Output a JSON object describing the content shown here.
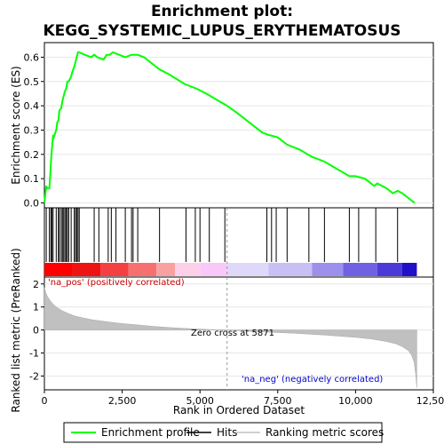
{
  "chart_data": {
    "type": "line",
    "title_line1": "Enrichment plot:",
    "title_line2": "KEGG_SYSTEMIC_LUPUS_ERYTHEMATOSUS",
    "top_panel": {
      "ylabel": "Enrichment score (ES)",
      "ylim": [
        -0.02,
        0.66
      ],
      "yticks": [
        "0.0",
        "0.1",
        "0.2",
        "0.3",
        "0.4",
        "0.5",
        "0.6"
      ],
      "ytick_values": [
        0.0,
        0.1,
        0.2,
        0.3,
        0.4,
        0.5,
        0.6
      ],
      "line_color": "#00ff00",
      "series": [
        {
          "name": "Enrichment profile",
          "x": [
            0,
            60,
            90,
            160,
            190,
            210,
            240,
            280,
            300,
            380,
            410,
            450,
            480,
            540,
            580,
            620,
            660,
            700,
            740,
            780,
            860,
            900,
            960,
            1000,
            1040,
            1080,
            1120,
            1300,
            1500,
            1600,
            1700,
            1900,
            2000,
            2100,
            2200,
            2400,
            2600,
            2800,
            3000,
            3200,
            3700,
            4000,
            4500,
            4900,
            5200,
            5600,
            5871,
            6200,
            6600,
            7000,
            7200,
            7500,
            7800,
            8200,
            8600,
            9000,
            9400,
            9800,
            10000,
            10300,
            10600,
            10700,
            11000,
            11200,
            11350,
            11500,
            11700,
            11900
          ],
          "y": [
            0.0,
            0.07,
            0.06,
            0.06,
            0.12,
            0.17,
            0.22,
            0.28,
            0.27,
            0.3,
            0.33,
            0.34,
            0.38,
            0.39,
            0.42,
            0.44,
            0.46,
            0.47,
            0.5,
            0.5,
            0.52,
            0.54,
            0.56,
            0.58,
            0.6,
            0.62,
            0.62,
            0.61,
            0.6,
            0.61,
            0.6,
            0.59,
            0.61,
            0.61,
            0.62,
            0.61,
            0.6,
            0.61,
            0.61,
            0.6,
            0.55,
            0.53,
            0.49,
            0.47,
            0.45,
            0.42,
            0.4,
            0.37,
            0.33,
            0.29,
            0.28,
            0.27,
            0.24,
            0.22,
            0.19,
            0.17,
            0.14,
            0.11,
            0.11,
            0.1,
            0.07,
            0.08,
            0.06,
            0.04,
            0.05,
            0.04,
            0.02,
            0.0
          ]
        }
      ]
    },
    "hits_panel": {
      "hit_positions": [
        60,
        160,
        210,
        240,
        280,
        380,
        450,
        480,
        540,
        580,
        620,
        660,
        700,
        740,
        780,
        860,
        960,
        1000,
        1040,
        1080,
        1120,
        1600,
        1750,
        2050,
        2150,
        2300,
        2600,
        2800,
        2850,
        3000,
        3700,
        4550,
        4850,
        5000,
        5300,
        5800,
        7150,
        7300,
        7450,
        7800,
        8500,
        9000,
        9800,
        10100,
        10650,
        11350
      ],
      "colorbar_colors": [
        "#ff0000",
        "#ee1212",
        "#f44040",
        "#f67070",
        "#f9a0a0",
        "#fcd0e8",
        "#f8c8f8",
        "#e0d8f8",
        "#c8c0f4",
        "#9d90ec",
        "#7060e4",
        "#4c3ad8",
        "#2010c8"
      ],
      "colorbar_stops": [
        0,
        900,
        1800,
        2700,
        3600,
        4200,
        5000,
        5871,
        7200,
        8600,
        9600,
        10700,
        11500,
        11970
      ]
    },
    "bottom_panel": {
      "ylabel": "Ranked list metric (PreRanked)",
      "ylim": [
        -2.6,
        2.3
      ],
      "yticks": [
        "2",
        "1",
        "0",
        "-1",
        "-2"
      ],
      "ytick_values": [
        2,
        1,
        0,
        -1,
        -2
      ],
      "fill_color": "#c0c0c0",
      "metric_x": [
        0,
        50,
        100,
        200,
        300,
        400,
        600,
        800,
        1000,
        1500,
        2000,
        2500,
        3000,
        3500,
        4000,
        4500,
        5000,
        5500,
        5871,
        6500,
        7000,
        7500,
        8000,
        8500,
        9000,
        9500,
        10000,
        10500,
        11000,
        11300,
        11500,
        11700,
        11800,
        11880,
        11930,
        11970
      ],
      "metric_y": [
        1.85,
        1.6,
        1.45,
        1.25,
        1.1,
        0.98,
        0.82,
        0.7,
        0.6,
        0.45,
        0.36,
        0.28,
        0.22,
        0.16,
        0.11,
        0.07,
        0.04,
        0.01,
        0.0,
        -0.05,
        -0.08,
        -0.11,
        -0.14,
        -0.18,
        -0.22,
        -0.27,
        -0.32,
        -0.39,
        -0.5,
        -0.6,
        -0.72,
        -0.9,
        -1.1,
        -1.4,
        -1.9,
        -2.5
      ],
      "xlabel": "Rank in Ordered Dataset",
      "xlim": [
        0,
        12500
      ],
      "xticks": [
        "0",
        "2,500",
        "5,000",
        "7,500",
        "10,000",
        "12,500"
      ],
      "xtick_values": [
        0,
        2500,
        5000,
        7500,
        10000,
        12500
      ],
      "annotation_pos": "'na_pos' (positively correlated)",
      "annotation_neg": "'na_neg' (negatively correlated)",
      "annotation_zero": "Zero cross at 5871",
      "zero_cross": 5871,
      "pos_color": "#cc0000",
      "neg_color": "#0000cc"
    },
    "legend": {
      "items": [
        {
          "label": "Enrichment profile",
          "color": "#00ff00",
          "style": "line"
        },
        {
          "label": "Hits",
          "color": "#000000",
          "style": "line"
        },
        {
          "label": "Ranking metric scores",
          "color": "#c0c0c0",
          "style": "line"
        }
      ]
    }
  }
}
